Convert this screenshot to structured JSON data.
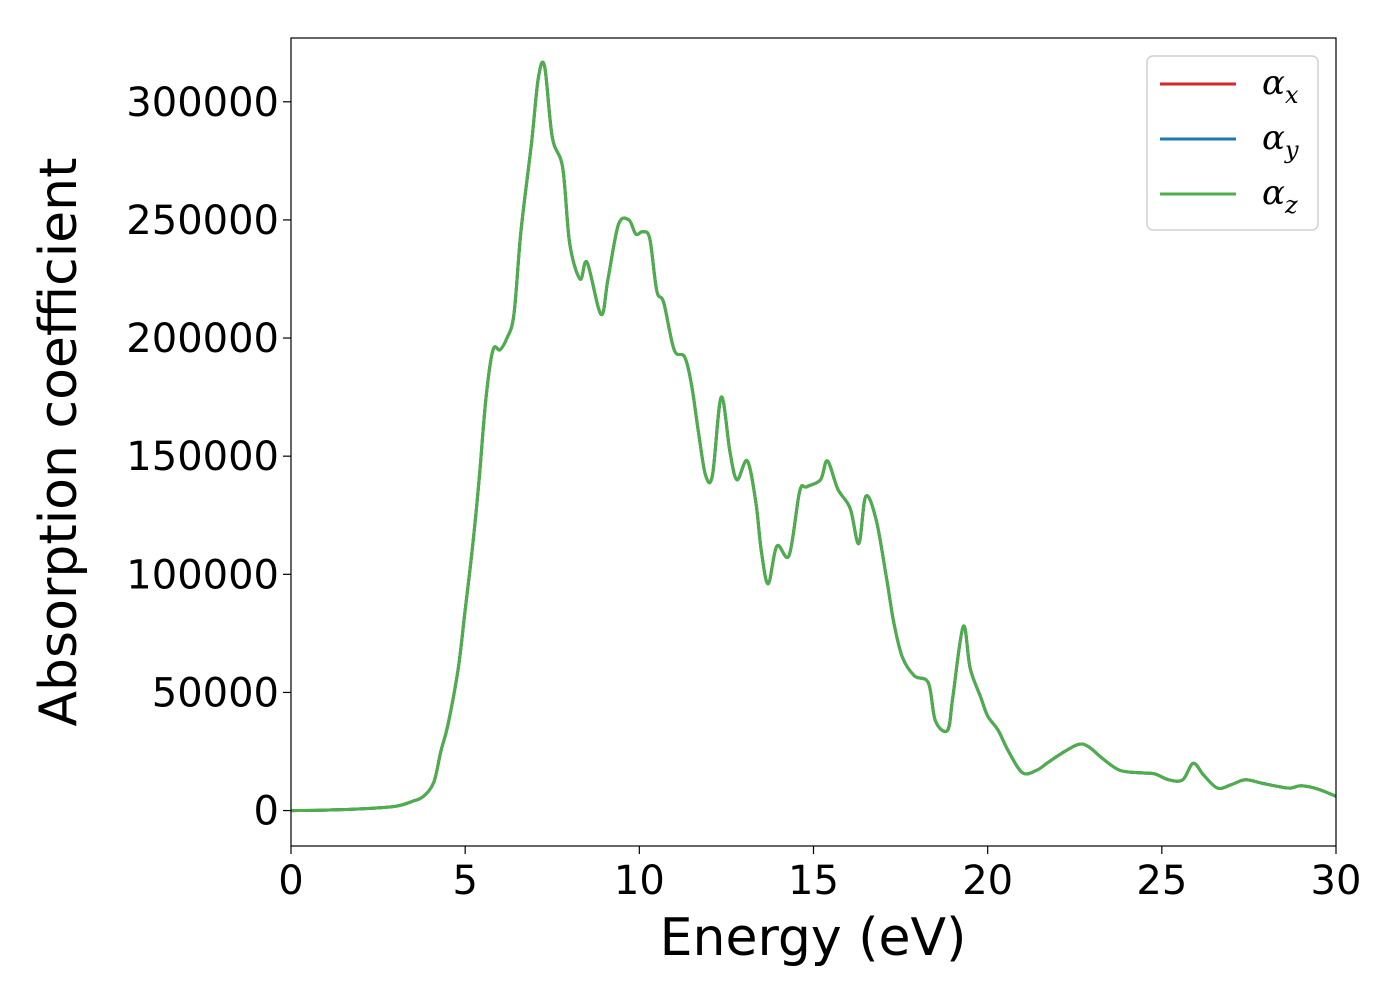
{
  "chart_data": {
    "type": "line",
    "title": "",
    "xlabel": "Energy (eV)",
    "ylabel": "Absorption coefficient",
    "xlim": [
      0,
      30
    ],
    "ylim": [
      -15000,
      327000
    ],
    "xticks": [
      0,
      5,
      10,
      15,
      20,
      25,
      30
    ],
    "yticks": [
      0,
      50000,
      100000,
      150000,
      200000,
      250000,
      300000
    ],
    "grid": false,
    "legend_position": "top-right",
    "x": [
      0,
      1,
      2,
      3,
      3.5,
      3.8,
      4.1,
      4.3,
      4.5,
      4.8,
      5,
      5.2,
      5.4,
      5.6,
      5.8,
      6,
      6.2,
      6.4,
      6.6,
      6.9,
      7.1,
      7.28,
      7.5,
      7.8,
      8,
      8.3,
      8.5,
      8.9,
      9.1,
      9.4,
      9.7,
      9.9,
      10.1,
      10.3,
      10.5,
      10.7,
      11,
      11.3,
      11.5,
      11.7,
      11.9,
      12.1,
      12.35,
      12.6,
      12.8,
      13.1,
      13.35,
      13.5,
      13.7,
      13.95,
      14.3,
      14.6,
      14.8,
      15.2,
      15.4,
      15.7,
      16.05,
      16.3,
      16.5,
      16.8,
      17.1,
      17.3,
      17.55,
      17.9,
      18.3,
      18.5,
      18.85,
      19,
      19.3,
      19.5,
      19.8,
      20,
      20.3,
      20.6,
      21,
      21.4,
      21.7,
      22.1,
      22.6,
      22.9,
      23.3,
      23.8,
      24.4,
      24.8,
      25.2,
      25.6,
      25.9,
      26.2,
      26.6,
      27,
      27.4,
      27.9,
      28.4,
      28.7,
      29,
      29.5,
      30
    ],
    "series": [
      {
        "name": "α_x",
        "color": "#d62728",
        "values": [
          0,
          200,
          700,
          1800,
          4000,
          6000,
          12000,
          25000,
          36000,
          60000,
          85000,
          110000,
          140000,
          175000,
          195000,
          195000,
          200000,
          210000,
          245000,
          282000,
          310000,
          315000,
          285000,
          272000,
          240000,
          225000,
          232000,
          210000,
          225000,
          248000,
          250000,
          244000,
          245000,
          242000,
          220000,
          215000,
          195000,
          192000,
          180000,
          160000,
          142000,
          142000,
          175000,
          152000,
          140000,
          148000,
          130000,
          110000,
          96000,
          112000,
          108000,
          135000,
          137000,
          140000,
          148000,
          136000,
          128000,
          113000,
          133000,
          123000,
          98000,
          80000,
          65000,
          57000,
          54000,
          38000,
          34000,
          48000,
          78000,
          60000,
          48000,
          40000,
          34000,
          25000,
          16000,
          17000,
          20000,
          24000,
          28000,
          27000,
          22000,
          17000,
          16000,
          15500,
          13000,
          13000,
          20000,
          15000,
          9500,
          11000,
          13000,
          11500,
          10000,
          9500,
          10500,
          9000,
          6000
        ]
      },
      {
        "name": "α_y",
        "color": "#1f77b4",
        "values": [
          0,
          200,
          700,
          1800,
          4000,
          6000,
          12000,
          25000,
          36000,
          60000,
          85000,
          110000,
          140000,
          175000,
          195000,
          195000,
          200000,
          210000,
          245000,
          282000,
          310000,
          315000,
          285000,
          272000,
          240000,
          225000,
          232000,
          210000,
          225000,
          248000,
          250000,
          244000,
          245000,
          242000,
          220000,
          215000,
          195000,
          192000,
          180000,
          160000,
          142000,
          142000,
          175000,
          152000,
          140000,
          148000,
          130000,
          110000,
          96000,
          112000,
          108000,
          135000,
          137000,
          140000,
          148000,
          136000,
          128000,
          113000,
          133000,
          123000,
          98000,
          80000,
          65000,
          57000,
          54000,
          38000,
          34000,
          48000,
          78000,
          60000,
          48000,
          40000,
          34000,
          25000,
          16000,
          17000,
          20000,
          24000,
          28000,
          27000,
          22000,
          17000,
          16000,
          15500,
          13000,
          13000,
          20000,
          15000,
          9500,
          11000,
          13000,
          11500,
          10000,
          9500,
          10500,
          9000,
          6000
        ]
      },
      {
        "name": "α_z",
        "color": "#4daf4a",
        "values": [
          0,
          200,
          700,
          1800,
          4000,
          6000,
          12000,
          25000,
          36000,
          60000,
          85000,
          110000,
          140000,
          175000,
          195000,
          195000,
          200000,
          210000,
          245000,
          282000,
          310000,
          315000,
          285000,
          272000,
          240000,
          225000,
          232000,
          210000,
          225000,
          248000,
          250000,
          244000,
          245000,
          242000,
          220000,
          215000,
          195000,
          192000,
          180000,
          160000,
          142000,
          142000,
          175000,
          152000,
          140000,
          148000,
          130000,
          110000,
          96000,
          112000,
          108000,
          135000,
          137000,
          140000,
          148000,
          136000,
          128000,
          113000,
          133000,
          123000,
          98000,
          80000,
          65000,
          57000,
          54000,
          38000,
          34000,
          48000,
          78000,
          60000,
          48000,
          40000,
          34000,
          25000,
          16000,
          17000,
          20000,
          24000,
          28000,
          27000,
          22000,
          17000,
          16000,
          15500,
          13000,
          13000,
          20000,
          15000,
          9500,
          11000,
          13000,
          11500,
          10000,
          9500,
          10500,
          9000,
          6000
        ]
      }
    ],
    "legend": [
      {
        "symbol": "α",
        "subscript": "x",
        "color": "#d62728"
      },
      {
        "symbol": "α",
        "subscript": "y",
        "color": "#1f77b4"
      },
      {
        "symbol": "α",
        "subscript": "z",
        "color": "#4daf4a"
      }
    ]
  }
}
